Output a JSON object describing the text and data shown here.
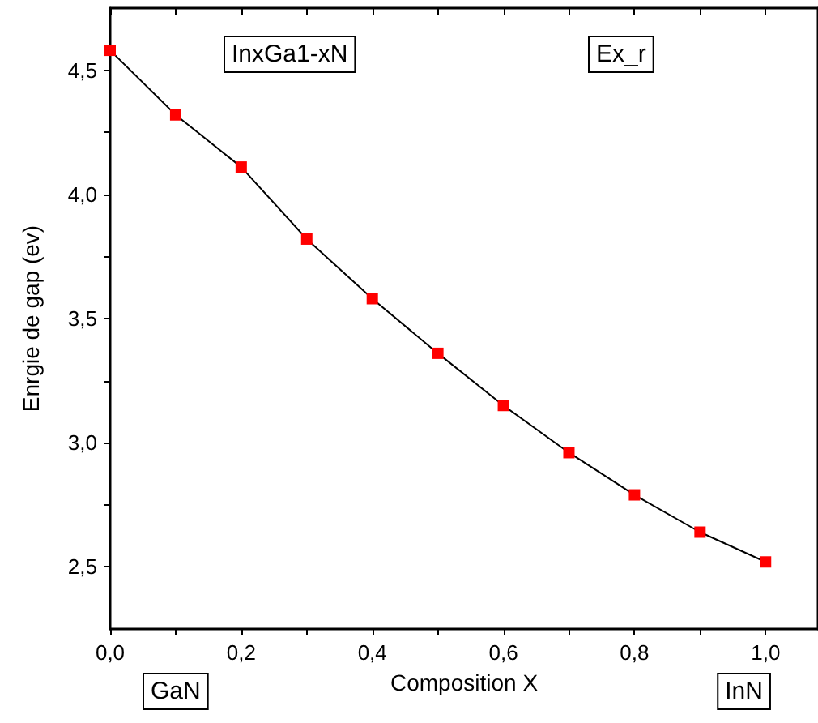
{
  "chart_data": {
    "type": "line",
    "xlabel": "Composition X",
    "ylabel": "Enrgie de gap (ev)",
    "annotations": [
      "InxGa1-xN",
      "Ex_r",
      "GaN",
      "InN"
    ],
    "x": [
      0,
      0.1,
      0.2,
      0.3,
      0.4,
      0.5,
      0.6,
      0.7,
      0.8,
      0.9,
      1.0
    ],
    "series": [
      {
        "color": "#ff0000",
        "values": [
          4.58,
          4.32,
          4.11,
          3.82,
          3.58,
          3.36,
          3.15,
          2.96,
          2.79,
          2.64,
          2.52
        ]
      }
    ],
    "xlim": [
      0,
      1.08
    ],
    "ylim": [
      2.25,
      4.75
    ],
    "xticks": [
      {
        "value": 0,
        "label": "0,0"
      },
      {
        "value": 0.1,
        "label": null
      },
      {
        "value": 0.2,
        "label": "0,2"
      },
      {
        "value": 0.3,
        "label": null
      },
      {
        "value": 0.4,
        "label": "0,4"
      },
      {
        "value": 0.5,
        "label": null
      },
      {
        "value": 0.6,
        "label": "0,6"
      },
      {
        "value": 0.7,
        "label": null
      },
      {
        "value": 0.8,
        "label": "0,8"
      },
      {
        "value": 0.9,
        "label": null
      },
      {
        "value": 1.0,
        "label": "1,0"
      }
    ],
    "yticks": [
      {
        "value": 2.5,
        "label": "2,5"
      },
      {
        "value": 2.75,
        "label": null
      },
      {
        "value": 3.0,
        "label": "3,0"
      },
      {
        "value": 3.25,
        "label": null
      },
      {
        "value": 3.5,
        "label": "3,5"
      },
      {
        "value": 3.75,
        "label": null
      },
      {
        "value": 4.0,
        "label": "4,0"
      },
      {
        "value": 4.25,
        "label": null
      },
      {
        "value": 4.5,
        "label": "4,5"
      }
    ],
    "grid": false,
    "marker": "square",
    "line_style": "solid"
  }
}
